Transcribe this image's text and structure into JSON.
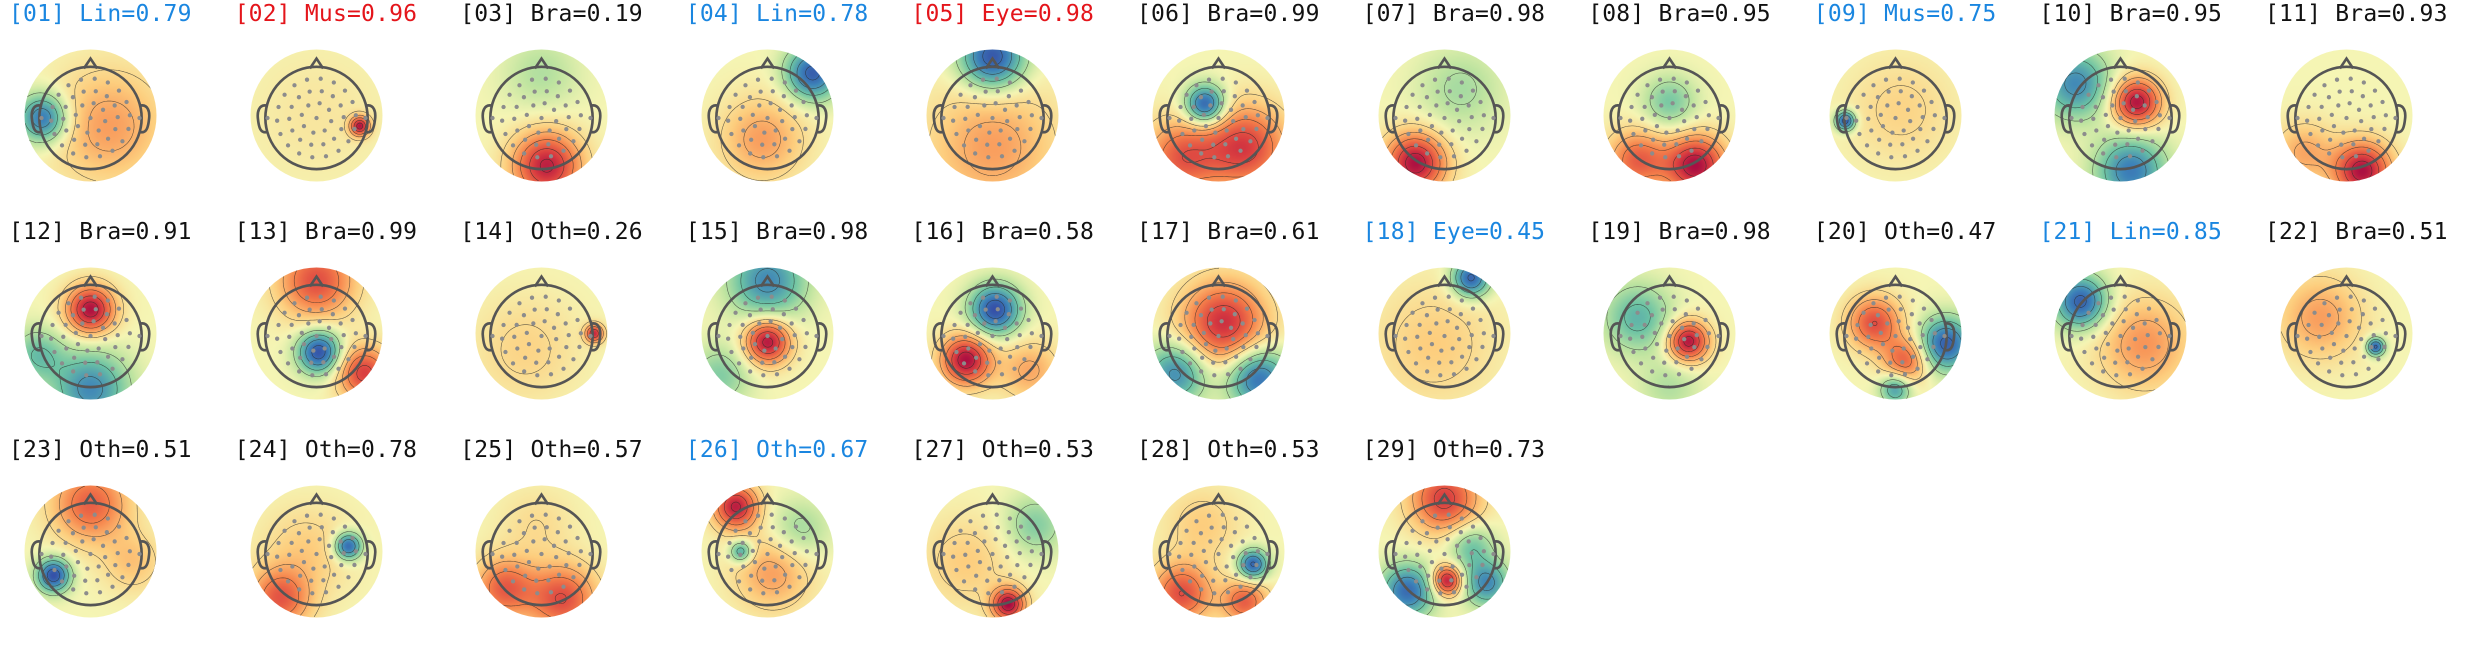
{
  "figure": {
    "label_colors": {
      "red": "#e4151b",
      "blue": "#1a86e0",
      "black": "#111111"
    },
    "components": [
      {
        "index": "[01]",
        "label": "Lin=0.79",
        "color": "blue",
        "blobs": [
          {
            "u": -0.9,
            "v": 0.05,
            "a": -1.2,
            "s": 0.32
          },
          {
            "u": 0.35,
            "v": 0.2,
            "a": 0.55,
            "s": 0.75
          }
        ]
      },
      {
        "index": "[02]",
        "label": "Mus=0.96",
        "color": "red",
        "blobs": [
          {
            "u": 0.82,
            "v": 0.2,
            "a": 1.3,
            "s": 0.13
          },
          {
            "u": 0.0,
            "v": 0.0,
            "a": 0.12,
            "s": 0.9
          }
        ]
      },
      {
        "index": "[03]",
        "label": "Bra=0.19",
        "color": "black",
        "blobs": [
          {
            "u": 0.1,
            "v": 0.95,
            "a": 1.3,
            "s": 0.45
          },
          {
            "u": 0.0,
            "v": -0.8,
            "a": -0.3,
            "s": 0.5
          }
        ]
      },
      {
        "index": "[04]",
        "label": "Lin=0.78",
        "color": "blue",
        "blobs": [
          {
            "u": 0.85,
            "v": -0.8,
            "a": -1.3,
            "s": 0.35
          },
          {
            "u": -0.1,
            "v": 0.45,
            "a": 0.55,
            "s": 0.55
          }
        ]
      },
      {
        "index": "[05]",
        "label": "Eye=0.98",
        "color": "red",
        "blobs": [
          {
            "u": 0.0,
            "v": -1.1,
            "a": -1.4,
            "s": 0.42
          },
          {
            "u": 0.0,
            "v": 0.6,
            "a": 0.55,
            "s": 0.85
          }
        ]
      },
      {
        "index": "[06]",
        "label": "Bra=0.99",
        "color": "black",
        "blobs": [
          {
            "u": -0.25,
            "v": -0.2,
            "a": -1.4,
            "s": 0.26
          },
          {
            "u": 0.5,
            "v": 0.6,
            "a": 1.1,
            "s": 0.55
          },
          {
            "u": -0.7,
            "v": 0.8,
            "a": 0.9,
            "s": 0.5
          }
        ]
      },
      {
        "index": "[07]",
        "label": "Bra=0.98",
        "color": "black",
        "blobs": [
          {
            "u": -0.55,
            "v": 0.9,
            "a": 1.4,
            "s": 0.4
          },
          {
            "u": 0.3,
            "v": -0.5,
            "a": -0.35,
            "s": 0.55
          }
        ]
      },
      {
        "index": "[08]",
        "label": "Bra=0.95",
        "color": "black",
        "blobs": [
          {
            "u": 0.0,
            "v": -0.25,
            "a": -0.55,
            "s": 0.35
          },
          {
            "u": 0.5,
            "v": 0.95,
            "a": 1.4,
            "s": 0.4
          },
          {
            "u": -0.6,
            "v": 0.85,
            "a": 0.9,
            "s": 0.4
          }
        ]
      },
      {
        "index": "[09]",
        "label": "Mus=0.75",
        "color": "blue",
        "blobs": [
          {
            "u": -0.95,
            "v": 0.1,
            "a": -1.4,
            "s": 0.13
          },
          {
            "u": 0.1,
            "v": -0.1,
            "a": 0.25,
            "s": 0.7
          }
        ]
      },
      {
        "index": "[10]",
        "label": "Bra=0.95",
        "color": "black",
        "blobs": [
          {
            "u": 0.3,
            "v": -0.25,
            "a": 1.4,
            "s": 0.32
          },
          {
            "u": -0.85,
            "v": -0.6,
            "a": -1.0,
            "s": 0.45
          },
          {
            "u": 0.2,
            "v": 1.05,
            "a": -1.1,
            "s": 0.45
          }
        ]
      },
      {
        "index": "[11]",
        "label": "Bra=0.93",
        "color": "black",
        "blobs": [
          {
            "u": 0.3,
            "v": 1.05,
            "a": 1.4,
            "s": 0.38
          },
          {
            "u": -0.8,
            "v": 0.7,
            "a": 0.5,
            "s": 0.4
          }
        ]
      },
      {
        "index": "[12]",
        "label": "Bra=0.91",
        "color": "black",
        "blobs": [
          {
            "u": 0.0,
            "v": -0.45,
            "a": 1.4,
            "s": 0.32
          },
          {
            "u": 0.0,
            "v": 1.05,
            "a": -1.0,
            "s": 0.5
          },
          {
            "u": -1.0,
            "v": 0.4,
            "a": -0.6,
            "s": 0.35
          }
        ]
      },
      {
        "index": "[13]",
        "label": "Bra=0.99",
        "color": "black",
        "blobs": [
          {
            "u": 0.05,
            "v": 0.35,
            "a": -1.4,
            "s": 0.28
          },
          {
            "u": 0.0,
            "v": -1.0,
            "a": 1.0,
            "s": 0.5
          },
          {
            "u": 0.9,
            "v": 0.75,
            "a": 1.1,
            "s": 0.35
          }
        ]
      },
      {
        "index": "[14]",
        "label": "Oth=0.26",
        "color": "black",
        "blobs": [
          {
            "u": 1.0,
            "v": 0.0,
            "a": 1.2,
            "s": 0.12
          },
          {
            "u": -0.3,
            "v": 0.3,
            "a": 0.25,
            "s": 0.7
          }
        ]
      },
      {
        "index": "[15]",
        "label": "Bra=0.98",
        "color": "black",
        "blobs": [
          {
            "u": 0.0,
            "v": 0.15,
            "a": 1.4,
            "s": 0.3
          },
          {
            "u": 0.0,
            "v": -1.0,
            "a": -1.0,
            "s": 0.5
          },
          {
            "u": -0.9,
            "v": 0.8,
            "a": -0.5,
            "s": 0.4
          }
        ]
      },
      {
        "index": "[16]",
        "label": "Bra=0.58",
        "color": "black",
        "blobs": [
          {
            "u": 0.05,
            "v": -0.45,
            "a": -1.4,
            "s": 0.33
          },
          {
            "u": -0.5,
            "v": 0.5,
            "a": 1.4,
            "s": 0.33
          },
          {
            "u": 0.7,
            "v": 0.7,
            "a": 0.5,
            "s": 0.4
          }
        ]
      },
      {
        "index": "[17]",
        "label": "Bra=0.61",
        "color": "black",
        "blobs": [
          {
            "u": 0.1,
            "v": -0.2,
            "a": 1.2,
            "s": 0.55
          },
          {
            "u": -0.8,
            "v": 0.75,
            "a": -1.0,
            "s": 0.4
          },
          {
            "u": 0.75,
            "v": 0.85,
            "a": -1.2,
            "s": 0.4
          }
        ]
      },
      {
        "index": "[18]",
        "label": "Eye=0.45",
        "color": "blue",
        "blobs": [
          {
            "u": 0.5,
            "v": -1.05,
            "a": -1.3,
            "s": 0.25
          },
          {
            "u": -0.2,
            "v": 0.2,
            "a": 0.3,
            "s": 0.8
          }
        ]
      },
      {
        "index": "[19]",
        "label": "Bra=0.98",
        "color": "black",
        "blobs": [
          {
            "u": 0.35,
            "v": 0.15,
            "a": 1.4,
            "s": 0.27
          },
          {
            "u": -0.6,
            "v": -0.3,
            "a": -0.7,
            "s": 0.45
          },
          {
            "u": 0.0,
            "v": 1.0,
            "a": -0.3,
            "s": 0.4
          }
        ]
      },
      {
        "index": "[20]",
        "label": "Oth=0.47",
        "color": "black",
        "blobs": [
          {
            "u": -0.4,
            "v": -0.2,
            "a": 1.0,
            "s": 0.35
          },
          {
            "u": 0.2,
            "v": 0.5,
            "a": 0.9,
            "s": 0.3
          },
          {
            "u": 0.95,
            "v": 0.2,
            "a": -1.3,
            "s": 0.35
          },
          {
            "u": 0.0,
            "v": 1.05,
            "a": -0.9,
            "s": 0.2
          }
        ]
      },
      {
        "index": "[21]",
        "label": "Lin=0.85",
        "color": "blue",
        "blobs": [
          {
            "u": -0.75,
            "v": -0.6,
            "a": -1.3,
            "s": 0.35
          },
          {
            "u": 0.45,
            "v": 0.2,
            "a": 0.6,
            "s": 0.6
          }
        ]
      },
      {
        "index": "[22]",
        "label": "Bra=0.51",
        "color": "black",
        "blobs": [
          {
            "u": 0.55,
            "v": 0.25,
            "a": -1.3,
            "s": 0.12
          },
          {
            "u": -0.5,
            "v": -0.3,
            "a": 0.55,
            "s": 0.55
          }
        ]
      },
      {
        "index": "[23]",
        "label": "Oth=0.51",
        "color": "black",
        "blobs": [
          {
            "u": -0.7,
            "v": 0.45,
            "a": -1.4,
            "s": 0.22
          },
          {
            "u": 0.0,
            "v": -0.9,
            "a": 0.9,
            "s": 0.5
          },
          {
            "u": 0.8,
            "v": 0.2,
            "a": 0.35,
            "s": 0.4
          }
        ]
      },
      {
        "index": "[24]",
        "label": "Oth=0.78",
        "color": "black",
        "blobs": [
          {
            "u": 0.6,
            "v": -0.1,
            "a": -1.3,
            "s": 0.18
          },
          {
            "u": -0.7,
            "v": 0.9,
            "a": 0.9,
            "s": 0.4
          },
          {
            "u": -0.2,
            "v": 0.0,
            "a": 0.3,
            "s": 0.6
          }
        ]
      },
      {
        "index": "[25]",
        "label": "Oth=0.57",
        "color": "black",
        "blobs": [
          {
            "u": 0.4,
            "v": 0.9,
            "a": 1.0,
            "s": 0.45
          },
          {
            "u": -0.7,
            "v": 0.7,
            "a": 0.9,
            "s": 0.4
          },
          {
            "u": -0.1,
            "v": -0.5,
            "a": 0.2,
            "s": 0.5
          }
        ]
      },
      {
        "index": "[26]",
        "label": "Oth=0.67",
        "color": "black",
        "label_color_override": "blue",
        "blobs": [
          {
            "u": -0.6,
            "v": -0.85,
            "a": 1.3,
            "s": 0.3
          },
          {
            "u": -0.5,
            "v": 0.0,
            "a": -0.9,
            "s": 0.15
          },
          {
            "u": 0.6,
            "v": -0.4,
            "a": -0.4,
            "s": 0.4
          },
          {
            "u": 0.1,
            "v": 0.4,
            "a": 0.55,
            "s": 0.5
          }
        ]
      },
      {
        "index": "[27]",
        "label": "Oth=0.53",
        "color": "black",
        "blobs": [
          {
            "u": 0.3,
            "v": 1.0,
            "a": 1.4,
            "s": 0.22
          },
          {
            "u": 0.8,
            "v": -0.5,
            "a": -0.5,
            "s": 0.4
          },
          {
            "u": -0.5,
            "v": 0.2,
            "a": 0.3,
            "s": 0.6
          }
        ]
      },
      {
        "index": "[28]",
        "label": "Oth=0.53",
        "color": "black",
        "blobs": [
          {
            "u": 0.65,
            "v": 0.25,
            "a": -1.3,
            "s": 0.2
          },
          {
            "u": -0.7,
            "v": 0.8,
            "a": 1.0,
            "s": 0.4
          },
          {
            "u": 0.5,
            "v": 0.95,
            "a": 0.9,
            "s": 0.3
          },
          {
            "u": -0.3,
            "v": -0.5,
            "a": 0.3,
            "s": 0.5
          }
        ]
      },
      {
        "index": "[29]",
        "label": "Oth=0.73",
        "color": "black",
        "blobs": [
          {
            "u": 0.05,
            "v": 0.55,
            "a": 1.4,
            "s": 0.2
          },
          {
            "u": 0.0,
            "v": -1.0,
            "a": 1.1,
            "s": 0.45
          },
          {
            "u": -0.7,
            "v": 0.75,
            "a": -1.2,
            "s": 0.35
          },
          {
            "u": 0.8,
            "v": 0.6,
            "a": -1.0,
            "s": 0.3
          },
          {
            "u": 0.5,
            "v": -0.1,
            "a": -0.6,
            "s": 0.3
          }
        ]
      }
    ]
  }
}
